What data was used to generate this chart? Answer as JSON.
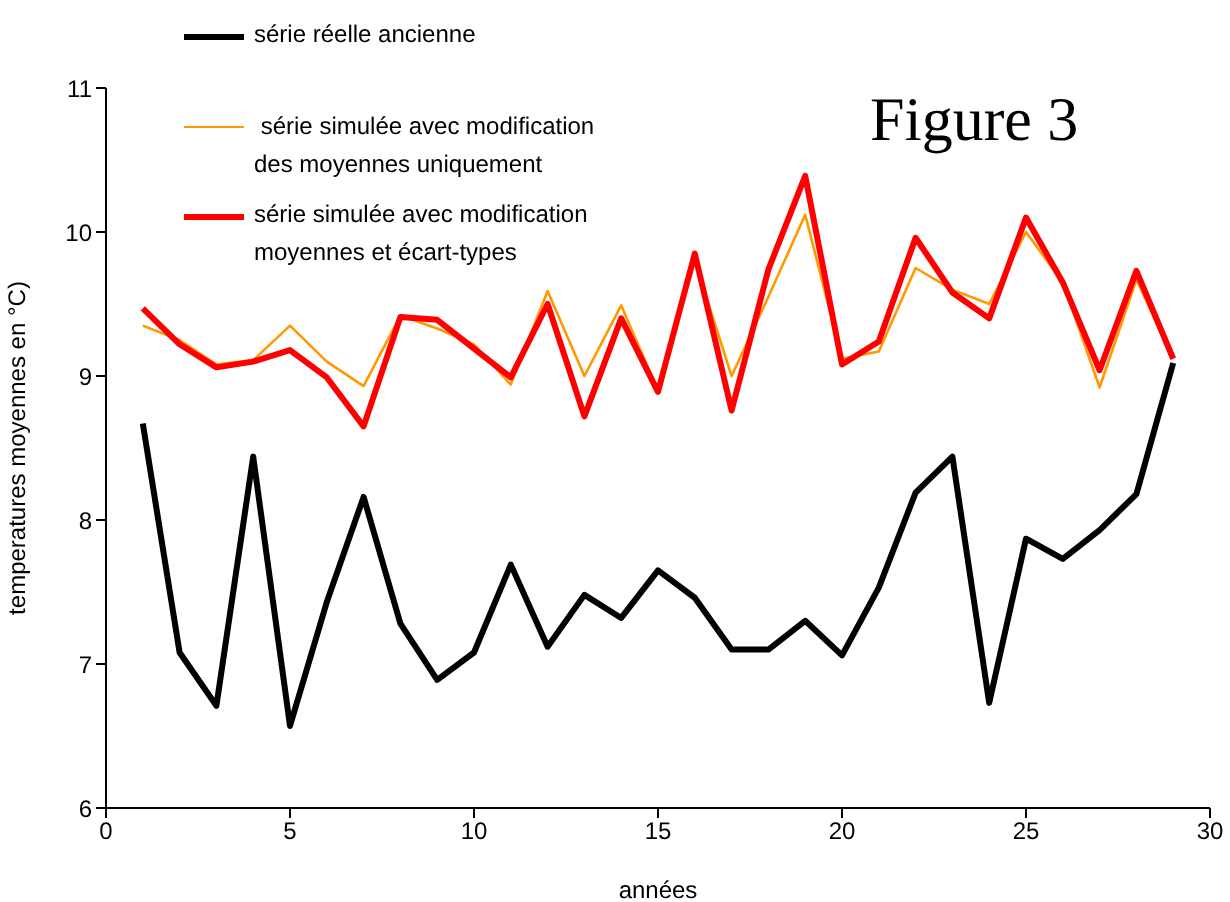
{
  "chart_data": {
    "type": "line",
    "title": "Figure 3",
    "xlabel": "années",
    "ylabel": "temperatures moyennes  en °C)",
    "x": [
      1,
      2,
      3,
      4,
      5,
      6,
      7,
      8,
      9,
      10,
      11,
      12,
      13,
      14,
      15,
      16,
      17,
      18,
      19,
      20,
      21,
      22,
      23,
      24,
      25,
      26,
      27,
      28,
      29
    ],
    "series": [
      {
        "name": "série réelle ancienne",
        "color": "#000000",
        "values": [
          8.67,
          7.08,
          6.71,
          8.44,
          6.57,
          7.43,
          8.16,
          7.28,
          6.89,
          7.08,
          7.69,
          7.12,
          7.48,
          7.32,
          7.65,
          7.46,
          7.1,
          7.1,
          7.3,
          7.06,
          7.53,
          8.19,
          8.44,
          6.73,
          7.87,
          7.73,
          7.93,
          8.18,
          9.09
        ]
      },
      {
        "name": " série simulée avec modification des moyennes uniquement",
        "color": "#ff9900",
        "values": [
          9.35,
          9.25,
          9.08,
          9.11,
          9.35,
          9.1,
          8.93,
          9.42,
          9.33,
          9.22,
          8.94,
          9.59,
          9.0,
          9.49,
          8.9,
          9.8,
          9.0,
          9.55,
          10.12,
          9.12,
          9.17,
          9.75,
          9.6,
          9.5,
          10.0,
          9.65,
          8.92,
          9.67,
          9.12
        ]
      },
      {
        "name": "série simulée avec modification moyennes et écart-types",
        "color": "#ff0000",
        "values": [
          9.47,
          9.22,
          9.06,
          9.1,
          9.18,
          8.99,
          8.65,
          9.41,
          9.39,
          9.19,
          8.99,
          9.5,
          8.72,
          9.4,
          8.89,
          9.85,
          8.76,
          9.74,
          10.39,
          9.08,
          9.24,
          9.96,
          9.58,
          9.4,
          10.1,
          9.65,
          9.04,
          9.73,
          9.12
        ]
      }
    ],
    "xlim": [
      0,
      30
    ],
    "xticks": [
      0,
      5,
      10,
      15,
      20,
      25,
      30
    ],
    "ylim": [
      6,
      11
    ],
    "yticks": [
      6,
      7,
      8,
      9,
      10,
      11
    ],
    "grid": false,
    "legend": "top left",
    "marker": "none",
    "line_style": "solid"
  }
}
